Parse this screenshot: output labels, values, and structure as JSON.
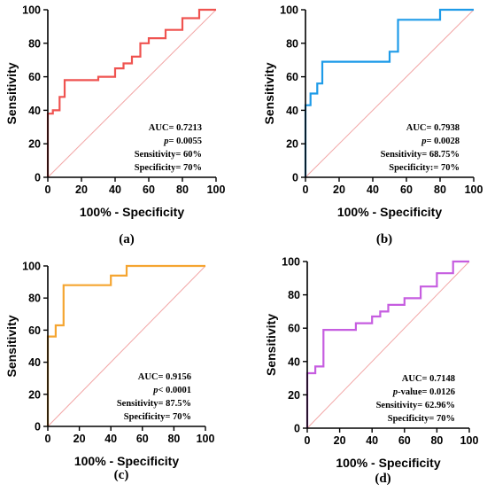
{
  "chart_data": [
    {
      "type": "line",
      "panel_label": "(a)",
      "xlabel": "100% - Specificity",
      "ylabel": "Sensitivity",
      "xlim": [
        0,
        100
      ],
      "ylim": [
        0,
        100
      ],
      "xticks": [
        0,
        20,
        40,
        60,
        80,
        100
      ],
      "yticks": [
        0,
        20,
        40,
        60,
        80,
        100
      ],
      "grid": false,
      "series": [
        {
          "color": "#ef5350",
          "x": [
            0,
            0,
            3,
            3,
            7,
            7,
            10,
            10,
            30,
            30,
            40,
            40,
            45,
            45,
            50,
            50,
            55,
            55,
            60,
            60,
            70,
            70,
            80,
            80,
            90,
            90,
            100
          ],
          "y": [
            0,
            38,
            38,
            40,
            40,
            48,
            48,
            58,
            58,
            60,
            60,
            65,
            65,
            68,
            68,
            72,
            72,
            80,
            80,
            83,
            83,
            88,
            88,
            95,
            95,
            100,
            100
          ]
        },
        {
          "color": "#f2a6a6",
          "x": [
            0,
            100
          ],
          "y": [
            0,
            100
          ]
        }
      ],
      "annotations": [
        {
          "label": "AUC",
          "text": "= 0.7213"
        },
        {
          "label": "p",
          "text": "= 0.0055"
        },
        {
          "label": "Sensitivity",
          "text": "= 60%"
        },
        {
          "label": "Specificity",
          "text": "= 70%"
        }
      ]
    },
    {
      "type": "line",
      "panel_label": "(b)",
      "xlabel": "100% - Specificity",
      "ylabel": "Sensitivity",
      "xlim": [
        0,
        100
      ],
      "ylim": [
        0,
        100
      ],
      "xticks": [
        0,
        20,
        40,
        60,
        80,
        100
      ],
      "yticks": [
        0,
        20,
        40,
        60,
        80,
        100
      ],
      "grid": false,
      "series": [
        {
          "color": "#1e9be8",
          "x": [
            0,
            0,
            3,
            3,
            7,
            7,
            10,
            10,
            50,
            50,
            55,
            55,
            80,
            80,
            100
          ],
          "y": [
            0,
            43,
            43,
            50,
            50,
            56,
            56,
            69,
            69,
            75,
            75,
            94,
            94,
            100,
            100
          ]
        },
        {
          "color": "#f2a6a6",
          "x": [
            0,
            100
          ],
          "y": [
            0,
            100
          ]
        }
      ],
      "annotations": [
        {
          "label": "AUC",
          "text": "= 0.7938"
        },
        {
          "label": "p",
          "text": "= 0.0028"
        },
        {
          "label": "Sensitivity",
          "text": "= 68.75%"
        },
        {
          "label": "Specificity",
          "text": ":= 70%"
        }
      ]
    },
    {
      "type": "line",
      "panel_label": "(c)",
      "xlabel": "100% - Specificity",
      "ylabel": "Sensitivity",
      "xlim": [
        0,
        100
      ],
      "ylim": [
        0,
        100
      ],
      "xticks": [
        0,
        20,
        40,
        60,
        80,
        100
      ],
      "yticks": [
        0,
        20,
        40,
        60,
        80,
        100
      ],
      "grid": false,
      "series": [
        {
          "color": "#f5a531",
          "x": [
            0,
            0,
            5,
            5,
            10,
            10,
            40,
            40,
            50,
            50,
            100
          ],
          "y": [
            0,
            56,
            56,
            63,
            63,
            88,
            88,
            94,
            94,
            100,
            100
          ]
        },
        {
          "color": "#f2a6a6",
          "x": [
            0,
            100
          ],
          "y": [
            0,
            100
          ]
        }
      ],
      "annotations": [
        {
          "label": "AUC",
          "text": "= 0.9156"
        },
        {
          "label": "p",
          "text": "< 0.0001"
        },
        {
          "label": "Sensitivity",
          "text": "= 87.5%"
        },
        {
          "label": "Specificity",
          "text": "= 70%"
        }
      ]
    },
    {
      "type": "line",
      "panel_label": "(d)",
      "xlabel": "100% - Specificity",
      "ylabel": "Sensitivity",
      "xlim": [
        0,
        100
      ],
      "ylim": [
        0,
        100
      ],
      "xticks": [
        0,
        20,
        40,
        60,
        80,
        100
      ],
      "yticks": [
        0,
        20,
        40,
        60,
        80,
        100
      ],
      "grid": false,
      "series": [
        {
          "color": "#c65de0",
          "x": [
            0,
            0,
            5,
            5,
            10,
            10,
            30,
            30,
            40,
            40,
            45,
            45,
            50,
            50,
            60,
            60,
            70,
            70,
            80,
            80,
            90,
            90,
            100
          ],
          "y": [
            0,
            33,
            33,
            37,
            37,
            59,
            59,
            63,
            63,
            67,
            67,
            70,
            70,
            74,
            74,
            78,
            78,
            85,
            85,
            93,
            93,
            100,
            100
          ]
        },
        {
          "color": "#f2a6a6",
          "x": [
            0,
            100
          ],
          "y": [
            0,
            100
          ]
        }
      ],
      "annotations": [
        {
          "label": "AUC",
          "text": "= 0.7148"
        },
        {
          "label": "p",
          "text": "-value= 0.0126"
        },
        {
          "label": "Sensitivity",
          "text": "= 62.96%"
        },
        {
          "label": "Specificity",
          "text": "= 70%"
        }
      ]
    }
  ]
}
